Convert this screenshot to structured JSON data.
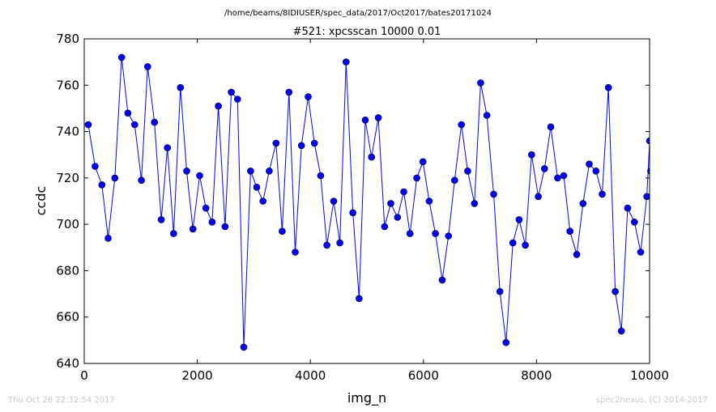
{
  "path_title": "/home/beams/8IDIUSER/spec_data/2017/Oct2017/bates20171024",
  "chart_data": {
    "type": "line",
    "title": "#521: xpcsscan 10000 0.01",
    "xlabel": "img_n",
    "ylabel": "ccdc",
    "xlim": [
      0,
      10000
    ],
    "ylim": [
      640,
      780
    ],
    "xticks": [
      0,
      2000,
      4000,
      6000,
      8000,
      10000
    ],
    "yticks": [
      640,
      660,
      680,
      700,
      720,
      740,
      760,
      780
    ],
    "grid": false,
    "marker": "circle",
    "color": "#0000ff",
    "series": [
      {
        "x": [
          72,
          192,
          312,
          422,
          542,
          662,
          772,
          892,
          1012,
          1122,
          1242,
          1362,
          1472,
          1582,
          1702,
          1812,
          1922,
          2042,
          2152,
          2262,
          2372,
          2492,
          2602,
          2712,
          2822,
          2942,
          3052,
          3162,
          3272,
          3392,
          3502,
          3622,
          3732,
          3842,
          3962,
          4072,
          4182,
          4292,
          4412,
          4522,
          4632,
          4752,
          4862,
          4972,
          5082,
          5202,
          5312,
          5422,
          5542,
          5652,
          5762,
          5882,
          5992,
          6102,
          6212,
          6332,
          6442,
          6552,
          6672,
          6782,
          6902,
          7012,
          7122,
          7242,
          7352,
          7462,
          7582,
          7692,
          7802,
          7912,
          8032,
          8142,
          8252,
          8372,
          8482,
          8592,
          8712,
          8822,
          8932,
          9052,
          9162,
          9272,
          9392,
          9502,
          9612,
          9732,
          9842,
          9952,
          10002,
          10020
        ],
        "y": [
          743,
          725,
          717,
          694,
          720,
          772,
          748,
          743,
          719,
          768,
          744,
          702,
          733,
          696,
          759,
          723,
          698,
          721,
          707,
          701,
          751,
          699,
          757,
          754,
          647,
          723,
          716,
          710,
          723,
          735,
          697,
          757,
          688,
          734,
          755,
          735,
          721,
          691,
          710,
          692,
          770,
          705,
          668,
          745,
          729,
          746,
          699,
          709,
          703,
          714,
          696,
          720,
          727,
          710,
          696,
          676,
          695,
          719,
          743,
          723,
          709,
          761,
          747,
          713,
          671,
          649,
          692,
          702,
          691,
          730,
          712,
          724,
          742,
          720,
          721,
          697,
          687,
          709,
          726,
          723,
          713,
          759,
          671,
          654,
          707,
          701,
          688,
          712,
          736,
          723
        ]
      }
    ]
  },
  "footer": {
    "left": "Thu Oct 26 22:32:54 2017",
    "right": "spec2nexus, (C) 2014-2017"
  }
}
